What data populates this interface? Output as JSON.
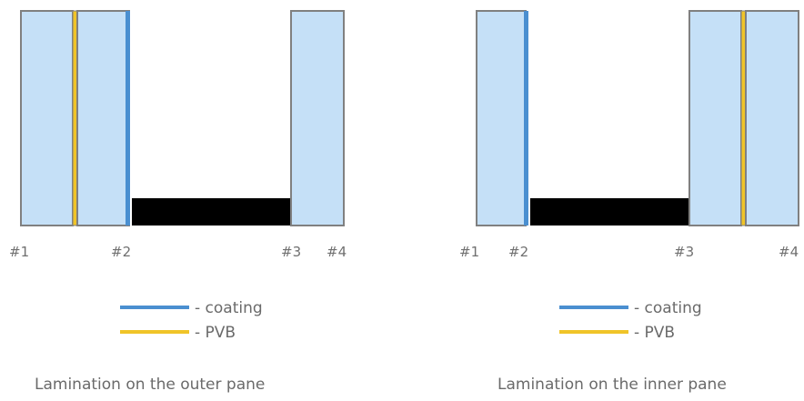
{
  "colors": {
    "glass_fill": "#c5e0f7",
    "glass_stroke": "#808080",
    "coating": "#4a8fd0",
    "pvb": "#f0c428",
    "spacer": "#000000",
    "text": "#6a6a6a"
  },
  "left": {
    "surface_labels": [
      "#1",
      "#2",
      "#3",
      "#4"
    ],
    "caption": "Lamination on the outer pane",
    "legend": {
      "coating": "- coating",
      "pvb": "- PVB"
    }
  },
  "right": {
    "surface_labels": [
      "#1",
      "#2",
      "#3",
      "#4"
    ],
    "caption": "Lamination on the inner pane",
    "legend": {
      "coating": "- coating",
      "pvb": "- PVB"
    }
  }
}
